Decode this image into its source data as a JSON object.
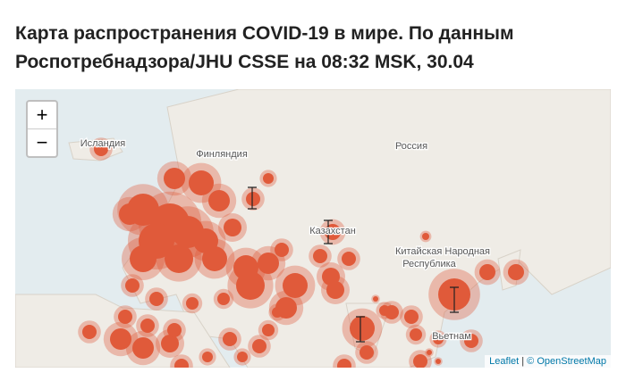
{
  "header": {
    "title": "Карта распространения COVID-19 в мире. По данным Роспотребнадзора/JHU CSSE на 08:32 MSK, 30.04"
  },
  "map": {
    "labels": [
      "Исландия",
      "Финляндия",
      "Россия",
      "Казахстан",
      "Китайская Народная",
      "Республика",
      "Вьетнам"
    ],
    "zoom": {
      "in": "+",
      "out": "−"
    },
    "attribution": {
      "leaflet": "Leaflet",
      "separator": "|",
      "osm": "© OpenStreetMap"
    }
  }
}
